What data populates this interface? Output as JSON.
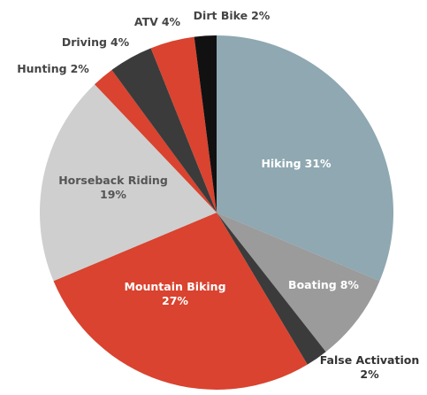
{
  "chart_data": {
    "type": "pie",
    "categories": [
      "Hiking",
      "Boating",
      "False Activation",
      "Mountain Biking",
      "Horseback Riding",
      "Hunting",
      "Driving",
      "ATV",
      "Dirt Bike"
    ],
    "values": [
      31,
      8,
      2,
      27,
      19,
      2,
      4,
      4,
      2
    ],
    "value_labels": [
      "31%",
      "8%",
      "2%",
      "27%",
      "19%",
      "2%",
      "4%",
      "4%",
      "2%"
    ],
    "colors": [
      "#8fa8b1",
      "#9b9b9b",
      "#3b3b3b",
      "#d9432f",
      "#cfcfcf",
      "#d9432f",
      "#3b3b3b",
      "#d9432f",
      "#111111"
    ]
  }
}
